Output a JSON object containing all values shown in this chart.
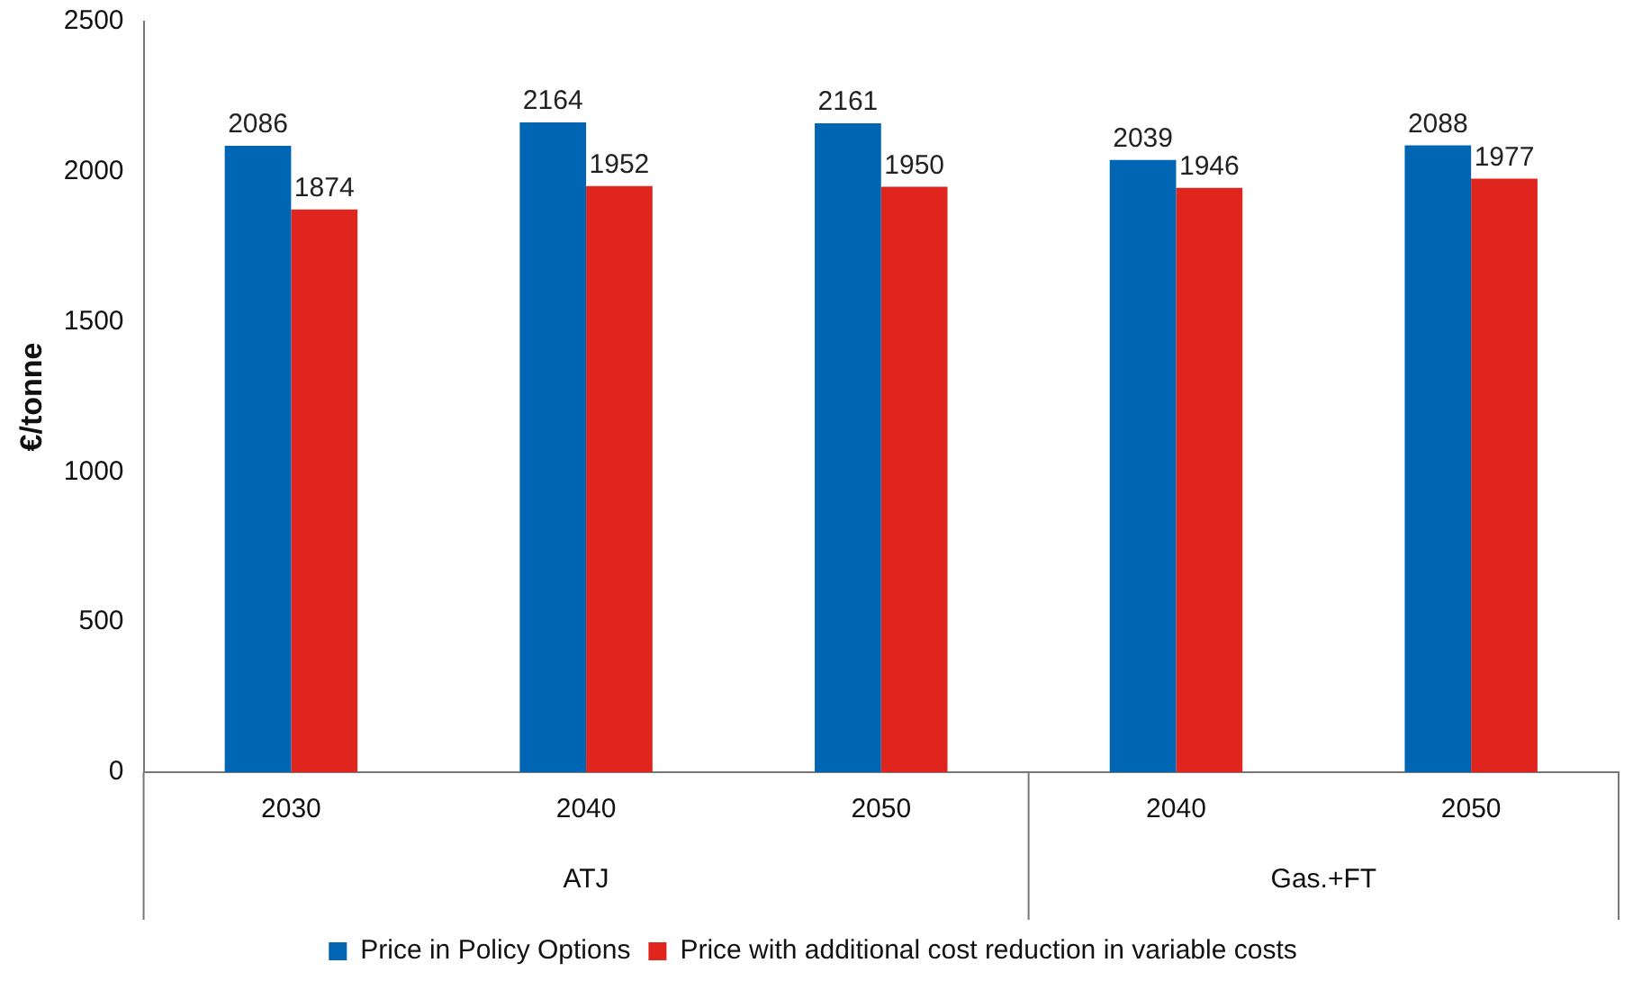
{
  "chart_data": {
    "type": "bar",
    "ylabel": "€/tonne",
    "categories": [
      "2030",
      "2040",
      "2050",
      "2040",
      "2050"
    ],
    "series": [
      {
        "name": "Price in Policy Options",
        "color": "#0066b3",
        "values": [
          2086,
          2164,
          2161,
          2039,
          2088
        ]
      },
      {
        "name": "Price with additional cost reduction in variable costs",
        "color": "#e0251f",
        "values": [
          1874,
          1952,
          1950,
          1946,
          1977
        ]
      }
    ],
    "ylim": [
      0,
      2500
    ],
    "yticks": [
      0,
      500,
      1000,
      1500,
      2000,
      2500
    ],
    "grid": false,
    "legend": "bottom",
    "data_labels": true,
    "annotations": [
      "ATJ",
      "Gas.+FT"
    ]
  }
}
